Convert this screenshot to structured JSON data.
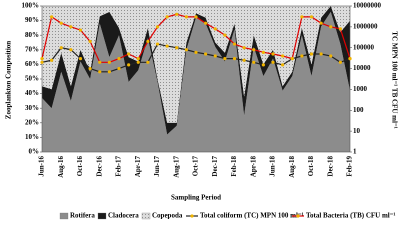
{
  "chart_data": {
    "type": "area",
    "y_label": "Zooplankton Composition",
    "x_label": "Sampling Period",
    "y2_label": "TC MPN 100 ml⁻¹   TB CFU ml⁻¹",
    "categories": [
      "Jun-16",
      null,
      "Aug-16",
      null,
      "Oct-16",
      null,
      "Dec-16",
      null,
      "Feb-17",
      null,
      "Apr-17",
      null,
      "Jun-17",
      null,
      "Aug-17",
      null,
      "Oct-17",
      null,
      "Dec-17",
      null,
      "Feb-18",
      null,
      "Apr-18",
      null,
      "Jun-18",
      null,
      "Aug-18",
      null,
      "Oct-18",
      null,
      "Dec-18",
      null,
      "Feb-19"
    ],
    "series": [
      {
        "name": "Rotifera",
        "color": "#8c8c8c",
        "values": [
          37,
          30,
          55,
          35,
          62,
          50,
          88,
          65,
          80,
          48,
          56,
          78,
          48,
          12,
          18,
          70,
          92,
          88,
          72,
          62,
          84,
          25,
          72,
          52,
          64,
          42,
          52,
          80,
          52,
          86,
          96,
          74,
          42
        ]
      },
      {
        "name": "Cladocera",
        "color": "#1a1a1a",
        "values": [
          8,
          13,
          13,
          10,
          8,
          5,
          5,
          31,
          5,
          17,
          6,
          7,
          2,
          8,
          2,
          5,
          3,
          4,
          3,
          6,
          4,
          13,
          8,
          8,
          6,
          3,
          3,
          5,
          8,
          6,
          4,
          8,
          48
        ]
      },
      {
        "name": "Copepoda",
        "color": "#dcdcdc",
        "values": [
          55,
          57,
          32,
          55,
          30,
          45,
          7,
          4,
          15,
          35,
          38,
          15,
          50,
          80,
          80,
          25,
          5,
          8,
          25,
          32,
          12,
          62,
          20,
          40,
          30,
          55,
          45,
          15,
          40,
          8,
          0,
          18,
          10
        ]
      },
      {
        "name": "Total coliform (TC)  MPN  100 ml⁻¹",
        "color": "#222222",
        "axis": "y2",
        "values": [
          20000,
          25000,
          100000,
          80000,
          30000,
          10000,
          7000,
          7000,
          10000,
          15000,
          20000,
          20000,
          150000,
          120000,
          100000,
          80000,
          60000,
          50000,
          40000,
          30000,
          30000,
          25000,
          20000,
          15000,
          20000,
          15000,
          30000,
          40000,
          50000,
          50000,
          40000,
          20000,
          30000
        ]
      },
      {
        "name": "Total Bacteria (TB) CFU ml⁻¹",
        "color": "#e00000",
        "axis": "y2",
        "values": [
          30000,
          3000000,
          1500000,
          1000000,
          700000,
          200000,
          20000,
          20000,
          30000,
          50000,
          30000,
          200000,
          1000000,
          3000000,
          4000000,
          3000000,
          3000000,
          1500000,
          800000,
          400000,
          150000,
          100000,
          80000,
          60000,
          50000,
          40000,
          30000,
          3000000,
          3000000,
          1500000,
          1000000,
          800000,
          30000
        ]
      }
    ],
    "marker_color": "#f0b400",
    "ylim": [
      0,
      100
    ],
    "yticks": [
      {
        "value": 0,
        "label": "0%"
      },
      {
        "value": 10,
        "label": "10%"
      },
      {
        "value": 20,
        "label": "20%"
      },
      {
        "value": 30,
        "label": "30%"
      },
      {
        "value": 40,
        "label": "40%"
      },
      {
        "value": 50,
        "label": "50%"
      },
      {
        "value": 60,
        "label": "60%"
      },
      {
        "value": 70,
        "label": "70%"
      },
      {
        "value": 80,
        "label": "80%"
      },
      {
        "value": 90,
        "label": "90%"
      },
      {
        "value": 100,
        "label": "100%"
      }
    ],
    "y2lim": [
      1,
      10000000
    ],
    "y2ticks": [
      1,
      10,
      100,
      1000,
      10000,
      100000,
      1000000,
      10000000
    ],
    "y2_log": true
  }
}
